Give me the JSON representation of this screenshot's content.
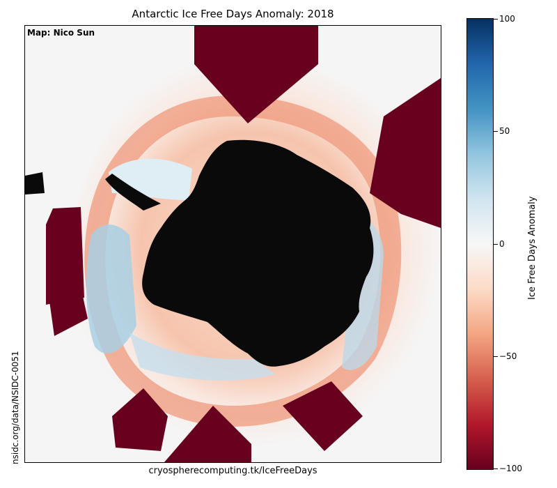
{
  "title": "Antarctic Ice Free Days Anomaly: 2018",
  "credit": "Map: Nico Sun",
  "source": "nsidc.org/data/NSIDC-0051",
  "website": "cryospherecomputing.tk/IceFreeDays",
  "colorbar": {
    "label": "Ice Free Days Anomaly",
    "min": -100,
    "max": 100,
    "ticks": [
      {
        "value": 100,
        "label": "100"
      },
      {
        "value": 50,
        "label": "50"
      },
      {
        "value": 0,
        "label": "0"
      },
      {
        "value": -50,
        "label": "−50"
      },
      {
        "value": -100,
        "label": "−100"
      }
    ],
    "colors": [
      "#053061",
      "#2166ac",
      "#4393c3",
      "#92c5de",
      "#d1e5f0",
      "#f7f7f7",
      "#fddbc7",
      "#f4a582",
      "#d6604d",
      "#b2182b",
      "#67001f"
    ]
  },
  "map": {
    "land_color": "#0a0a0a",
    "background_color": "#f5f5f5",
    "missing_color": "#67001f"
  }
}
